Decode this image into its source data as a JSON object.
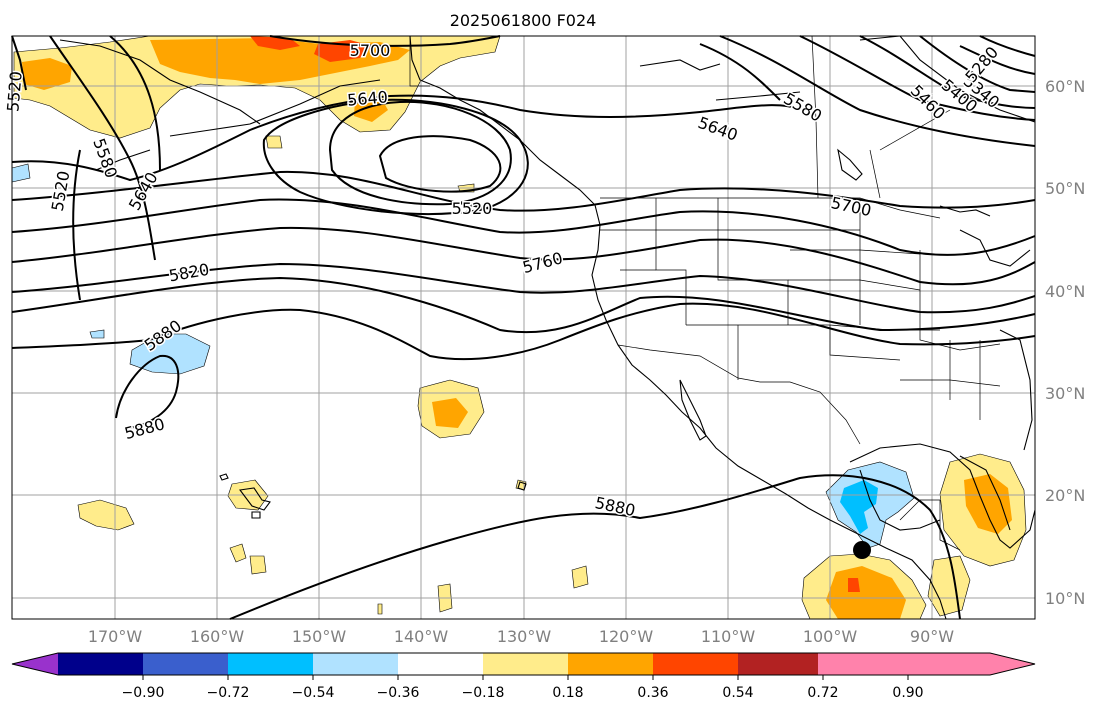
{
  "title": "2025061800 F024",
  "lat_labels": [
    "60°N",
    "50°N",
    "40°N",
    "30°N",
    "20°N",
    "10°N"
  ],
  "lon_labels": [
    "170°W",
    "160°W",
    "150°W",
    "140°W",
    "130°W",
    "120°W",
    "110°W",
    "100°W",
    "90°W"
  ],
  "contour_labels": [
    "5700",
    "5640",
    "5520",
    "5580",
    "5520",
    "5640",
    "5520",
    "5580",
    "5460",
    "5400",
    "5340",
    "5280",
    "5640",
    "5700",
    "5760",
    "5820",
    "5880",
    "5880",
    "5880"
  ],
  "colorbar": {
    "ticks": [
      "−0.90",
      "−0.72",
      "−0.54",
      "−0.36",
      "−0.18",
      "0.18",
      "0.36",
      "0.54",
      "0.72",
      "0.90"
    ],
    "colors": [
      "#9932cc",
      "#00008b",
      "#3a5fcd",
      "#00bfff",
      "#b0e2ff",
      "#ffffff",
      "#ffec8b",
      "#ffa500",
      "#ff4500",
      "#b22222",
      "#ff82ab"
    ]
  }
}
